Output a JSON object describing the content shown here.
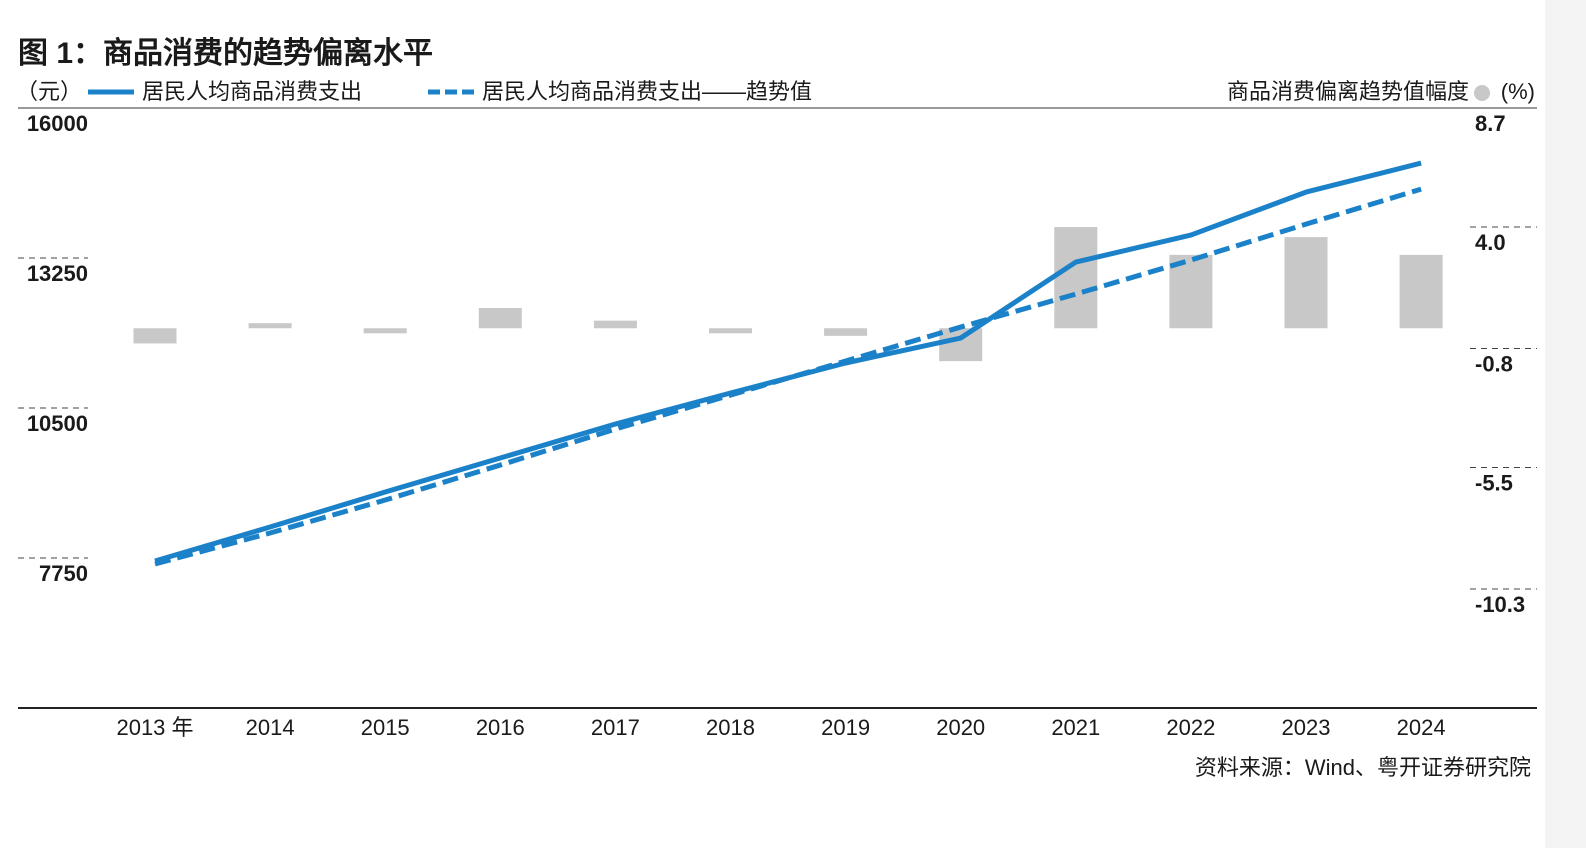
{
  "chart_data": {
    "type": "bar_line",
    "title": "图 1：商品消费的趋势偏离水平",
    "y_label": "（元）",
    "y2_label": "(%)",
    "source": "资料来源：Wind、粤开证券研究院",
    "categories": [
      "2013 年",
      "2014",
      "2015",
      "2016",
      "2017",
      "2018",
      "2019",
      "2020",
      "2021",
      "2022",
      "2023",
      "2024"
    ],
    "ylim": [
      5000,
      16000
    ],
    "yticks": [
      7750,
      10500,
      13250,
      16000
    ],
    "y2lim": [
      -15.0,
      8.7
    ],
    "y2ticks": [
      -10.3,
      -5.5,
      -0.8,
      {
        "value": 4.0,
        "label": "4.0"
      },
      8.7
    ],
    "series": [
      {
        "name": "居民人均商品消费支出",
        "type": "line",
        "color": "#1b82c9",
        "dash": false,
        "values": [
          7695,
          8318,
          8960,
          9583,
          10206,
          10775,
          11325,
          11783,
          13175,
          13670,
          14458,
          14990
        ]
      },
      {
        "name": "居民人均商品消费支出——趋势值",
        "type": "line",
        "color": "#1b82c9",
        "dash": true,
        "values": [
          7640,
          8208,
          8813,
          9454,
          10114,
          10737,
          11361,
          11984,
          12589,
          13212,
          13871,
          14513
        ]
      },
      {
        "name": "商品消费偏离趋势值幅度",
        "type": "bar",
        "color": "#c8c8c8",
        "axis": "y2",
        "values": [
          -0.6,
          0.2,
          -0.2,
          0.8,
          0.3,
          -0.2,
          -0.3,
          -1.3,
          4.0,
          2.9,
          3.6,
          2.9
        ]
      }
    ]
  }
}
